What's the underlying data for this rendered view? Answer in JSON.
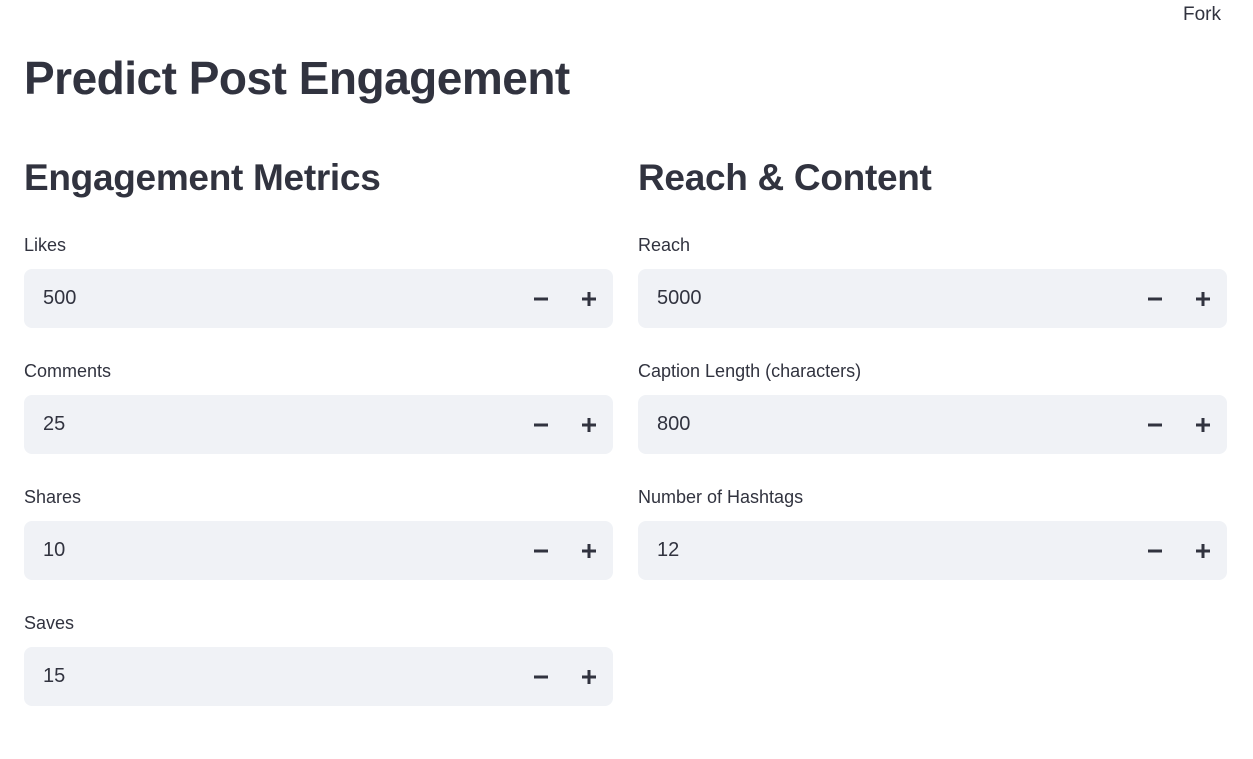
{
  "header": {
    "menu": "Fork"
  },
  "title": "Predict Post Engagement",
  "columns": [
    {
      "heading": "Engagement Metrics",
      "fields": [
        {
          "label": "Likes",
          "value": 500
        },
        {
          "label": "Comments",
          "value": 25
        },
        {
          "label": "Shares",
          "value": 10
        },
        {
          "label": "Saves",
          "value": 15
        }
      ]
    },
    {
      "heading": "Reach & Content",
      "fields": [
        {
          "label": "Reach",
          "value": 5000
        },
        {
          "label": "Caption Length (characters)",
          "value": 800
        },
        {
          "label": "Number of Hashtags",
          "value": 12
        }
      ]
    }
  ]
}
